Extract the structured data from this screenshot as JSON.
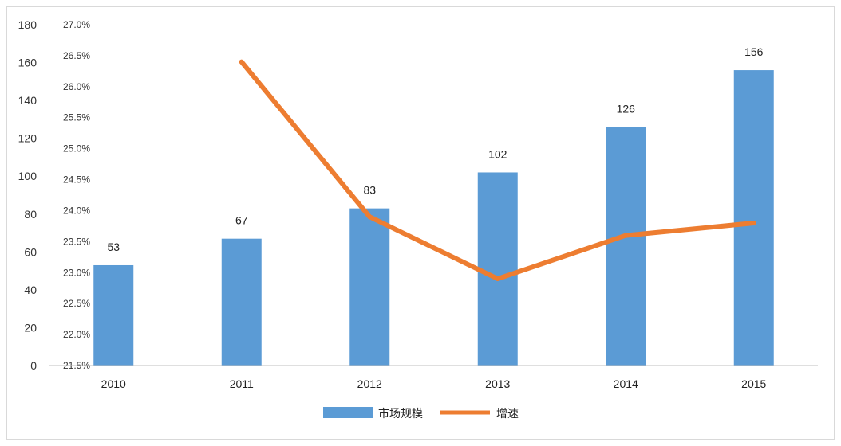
{
  "chart_data": {
    "type": "bar",
    "categories": [
      "2010",
      "2011",
      "2012",
      "2013",
      "2014",
      "2015"
    ],
    "series": [
      {
        "name": "市场规模",
        "type": "bar",
        "axis": "left",
        "values": [
          53,
          67,
          83,
          102,
          126,
          156
        ],
        "data_labels": [
          "53",
          "67",
          "83",
          "102",
          "126",
          "156"
        ],
        "color": "#5b9bd5"
      },
      {
        "name": "增速",
        "type": "line",
        "axis": "right",
        "values": [
          null,
          26.4,
          23.9,
          22.9,
          23.6,
          23.8
        ],
        "color": "#ed7d31"
      }
    ],
    "ylim_left": [
      0,
      180
    ],
    "yticks_left": [
      "0",
      "20",
      "40",
      "60",
      "80",
      "100",
      "120",
      "140",
      "160",
      "180"
    ],
    "ylim_right": [
      21.5,
      27.0
    ],
    "yticks_right": [
      "21.5%",
      "22.0%",
      "22.5%",
      "23.0%",
      "23.5%",
      "24.0%",
      "24.5%",
      "25.0%",
      "25.5%",
      "26.0%",
      "26.5%",
      "27.0%"
    ],
    "grid": false,
    "legend_position": "bottom"
  }
}
